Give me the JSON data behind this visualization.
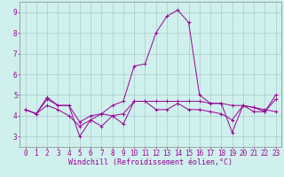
{
  "xlabel": "Windchill (Refroidissement éolien,°C)",
  "background_color": "#cff0ec",
  "grid_color": "#aacccc",
  "line_color": "#990099",
  "x": [
    0,
    1,
    2,
    3,
    4,
    5,
    6,
    7,
    8,
    9,
    10,
    11,
    12,
    13,
    14,
    15,
    16,
    17,
    18,
    19,
    20,
    21,
    22,
    23
  ],
  "series": [
    [
      4.3,
      4.1,
      4.9,
      4.5,
      4.5,
      3.0,
      3.8,
      4.1,
      4.5,
      4.7,
      6.4,
      6.5,
      8.0,
      8.8,
      9.1,
      8.5,
      5.0,
      4.6,
      4.6,
      3.2,
      4.5,
      4.2,
      4.2,
      5.0
    ],
    [
      4.3,
      4.1,
      4.8,
      4.5,
      4.5,
      3.7,
      4.0,
      4.1,
      4.0,
      4.1,
      4.7,
      4.7,
      4.7,
      4.7,
      4.7,
      4.7,
      4.7,
      4.6,
      4.6,
      4.5,
      4.5,
      4.4,
      4.3,
      4.2
    ],
    [
      4.3,
      4.1,
      4.5,
      4.3,
      4.0,
      3.5,
      3.8,
      3.5,
      4.0,
      3.6,
      4.7,
      4.7,
      4.3,
      4.3,
      4.6,
      4.3,
      4.3,
      4.2,
      4.1,
      3.8,
      4.5,
      4.4,
      4.2,
      4.8
    ]
  ],
  "ylim": [
    2.5,
    9.5
  ],
  "xlim": [
    -0.5,
    23.5
  ],
  "yticks": [
    3,
    4,
    5,
    6,
    7,
    8,
    9
  ],
  "xticks": [
    0,
    1,
    2,
    3,
    4,
    5,
    6,
    7,
    8,
    9,
    10,
    11,
    12,
    13,
    14,
    15,
    16,
    17,
    18,
    19,
    20,
    21,
    22,
    23
  ],
  "tick_fontsize": 5.5,
  "label_fontsize": 6.0
}
